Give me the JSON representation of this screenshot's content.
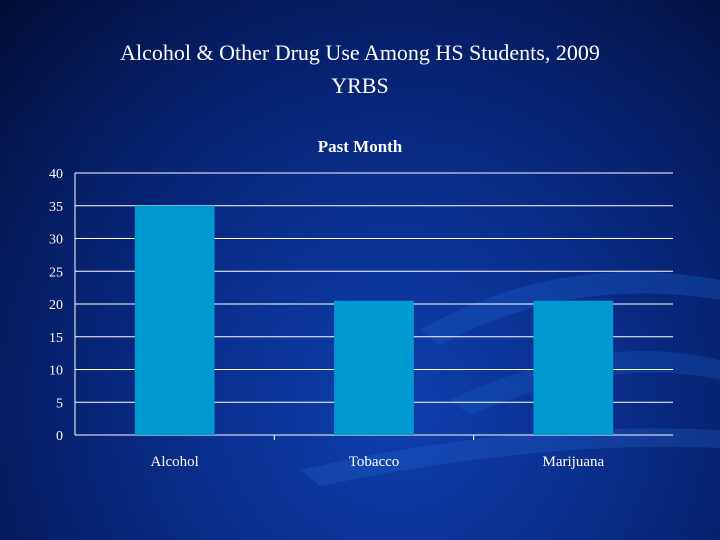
{
  "slide": {
    "title_line1": "Alcohol & Other Drug Use Among HS Students, 2009",
    "title_line2": "YRBS"
  },
  "colors": {
    "bar": "#0099d0",
    "grid": "#ffffff",
    "text": "#ffffff"
  },
  "chart_data": {
    "type": "bar",
    "title": "Past Month",
    "categories": [
      "Alcohol",
      "Tobacco",
      "Marijuana"
    ],
    "values": [
      35,
      20.5,
      20.5
    ],
    "ylim": [
      0,
      40
    ],
    "yticks": [
      0,
      5,
      10,
      15,
      20,
      25,
      30,
      35,
      40
    ],
    "grid": true,
    "xlabel": "",
    "ylabel": ""
  }
}
